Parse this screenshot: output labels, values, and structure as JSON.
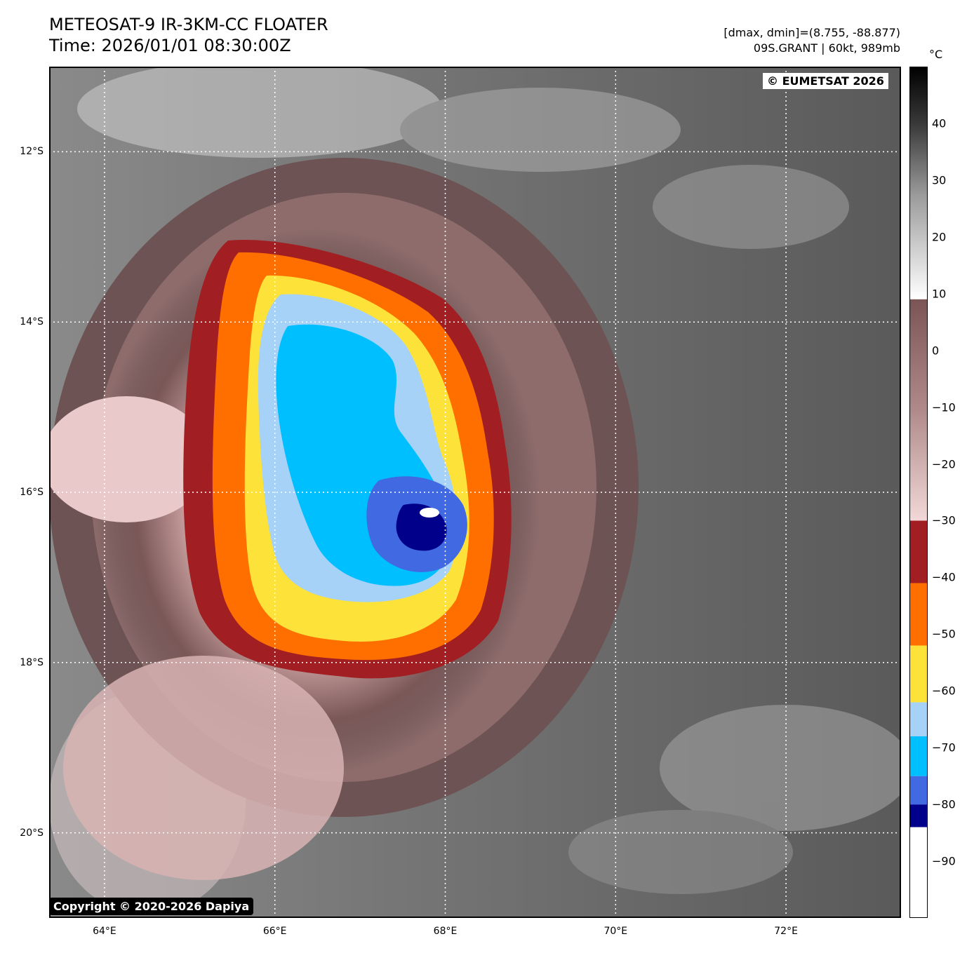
{
  "header": {
    "title": "METEOSAT-9 IR-3KM-CC FLOATER",
    "time": "Time: 2026/01/01 08:30:00Z",
    "range": "[dmax, dmin]=(8.755, -88.877)",
    "storm": "09S.GRANT | 60kt, 989mb"
  },
  "overlay": {
    "eumetsat": "© EUMETSAT 2026",
    "dapiya": "Copyright © 2020-2026 Dapiya"
  },
  "map": {
    "lon_range": [
      63.35,
      73.35
    ],
    "lat_range": [
      -21.0,
      -11.0
    ],
    "grid_lines": "dotted white",
    "x_ticks": [
      {
        "value": 64,
        "label": "64°E"
      },
      {
        "value": 66,
        "label": "66°E"
      },
      {
        "value": 68,
        "label": "68°E"
      },
      {
        "value": 70,
        "label": "70°E"
      },
      {
        "value": 72,
        "label": "72°E"
      }
    ],
    "y_ticks": [
      {
        "value": -12,
        "label": "12°S"
      },
      {
        "value": -14,
        "label": "14°S"
      },
      {
        "value": -16,
        "label": "16°S"
      },
      {
        "value": -18,
        "label": "18°S"
      },
      {
        "value": -20,
        "label": "20°S"
      }
    ],
    "storm_center": {
      "lon": 67.85,
      "lat": -16.2
    }
  },
  "colorbar": {
    "unit": "°C",
    "range": [
      -100,
      50
    ],
    "ticks": [
      {
        "value": 40,
        "label": "40"
      },
      {
        "value": 30,
        "label": "30"
      },
      {
        "value": 20,
        "label": "20"
      },
      {
        "value": 10,
        "label": "10"
      },
      {
        "value": 0,
        "label": "0"
      },
      {
        "value": -10,
        "label": "−10"
      },
      {
        "value": -20,
        "label": "−20"
      },
      {
        "value": -30,
        "label": "−30"
      },
      {
        "value": -40,
        "label": "−40"
      },
      {
        "value": -50,
        "label": "−50"
      },
      {
        "value": -60,
        "label": "−60"
      },
      {
        "value": -70,
        "label": "−70"
      },
      {
        "value": -80,
        "label": "−80"
      },
      {
        "value": -90,
        "label": "−90"
      }
    ],
    "bands": [
      {
        "from": -100,
        "to": -84,
        "color": "#ffffff"
      },
      {
        "from": -84,
        "to": -80,
        "color": "#00008b"
      },
      {
        "from": -80,
        "to": -75,
        "color": "#4169e1"
      },
      {
        "from": -75,
        "to": -68,
        "color": "#00bfff"
      },
      {
        "from": -68,
        "to": -62,
        "color": "#a6d2f7"
      },
      {
        "from": -62,
        "to": -52,
        "color": "#fde23a"
      },
      {
        "from": -52,
        "to": -41,
        "color": "#ff6f00"
      },
      {
        "from": -41,
        "to": -30,
        "color": "#a11f22"
      }
    ]
  }
}
